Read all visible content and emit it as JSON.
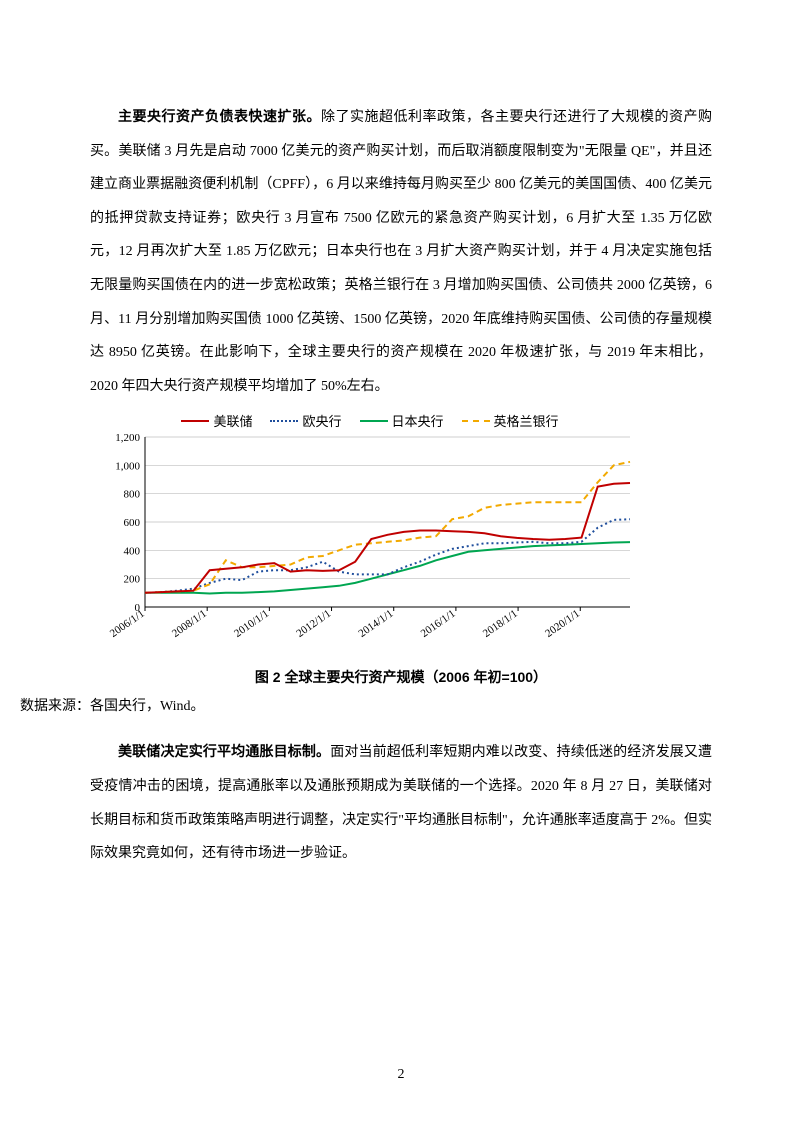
{
  "para1": {
    "bold": "主要央行资产负债表快速扩张。",
    "rest": "除了实施超低利率政策，各主要央行还进行了大规模的资产购买。美联储 3 月先是启动 7000 亿美元的资产购买计划，而后取消额度限制变为\"无限量 QE\"，并且还建立商业票据融资便利机制（CPFF），6 月以来维持每月购买至少 800 亿美元的美国国债、400 亿美元的抵押贷款支持证券；欧央行 3 月宣布 7500 亿欧元的紧急资产购买计划，6 月扩大至 1.35 万亿欧元，12 月再次扩大至 1.85 万亿欧元；日本央行也在 3 月扩大资产购买计划，并于 4 月决定实施包括无限量购买国债在内的进一步宽松政策；英格兰银行在 3 月增加购买国债、公司债共 2000 亿英镑，6 月、11 月分别增加购买国债 1000 亿英镑、1500 亿英镑，2020 年底维持购买国债、公司债的存量规模达 8950 亿英镑。在此影响下，全球主要央行的资产规模在 2020 年极速扩张，与 2019 年末相比，2020 年四大央行资产规模平均增加了 50%左右。"
  },
  "chart": {
    "legend": {
      "fed": "美联储",
      "ecb": "欧央行",
      "boj": "日本央行",
      "boe": "英格兰银行"
    },
    "colors": {
      "fed": "#c00000",
      "ecb": "#1f4e9c",
      "boj": "#00a651",
      "boe": "#f2a900",
      "axis": "#000000",
      "grid": "#bfbfbf"
    },
    "styles": {
      "fed_dash": "none",
      "ecb_dash": "2,3",
      "boj_dash": "none",
      "boe_dash": "6,4",
      "line_width": 2
    },
    "y": {
      "min": 0,
      "max": 1200,
      "step": 200,
      "ticks": [
        "0",
        "200",
        "400",
        "600",
        "800",
        "1,000",
        "1,200"
      ]
    },
    "x_labels": [
      "2006/1/1",
      "2008/1/1",
      "2010/1/1",
      "2012/1/1",
      "2014/1/1",
      "2016/1/1",
      "2018/1/1",
      "2020/1/1"
    ],
    "series": {
      "fed": [
        100,
        105,
        110,
        115,
        260,
        270,
        280,
        300,
        310,
        250,
        260,
        255,
        260,
        320,
        480,
        510,
        530,
        540,
        540,
        535,
        530,
        520,
        500,
        488,
        480,
        475,
        480,
        490,
        850,
        870,
        875
      ],
      "ecb": [
        100,
        105,
        115,
        130,
        170,
        200,
        190,
        250,
        260,
        260,
        280,
        320,
        250,
        230,
        230,
        230,
        280,
        320,
        370,
        410,
        430,
        450,
        450,
        455,
        460,
        450,
        450,
        460,
        560,
        615,
        620
      ],
      "boj": [
        100,
        100,
        100,
        100,
        95,
        100,
        100,
        105,
        110,
        120,
        130,
        140,
        150,
        170,
        200,
        230,
        260,
        290,
        330,
        360,
        390,
        400,
        410,
        420,
        430,
        435,
        440,
        445,
        450,
        455,
        458
      ],
      "boe": [
        100,
        105,
        110,
        115,
        160,
        330,
        280,
        280,
        290,
        300,
        350,
        360,
        400,
        440,
        450,
        460,
        470,
        490,
        500,
        620,
        640,
        700,
        720,
        730,
        740,
        740,
        740,
        740,
        880,
        1000,
        1025
      ]
    },
    "caption": "图 2  全球主要央行资产规模（2006 年初=100）",
    "source_label": "数据来源：",
    "source_text": "各国央行，Wind。"
  },
  "para2": {
    "bold": "美联储决定实行平均通胀目标制。",
    "rest": "面对当前超低利率短期内难以改变、持续低迷的经济发展又遭受疫情冲击的困境，提高通胀率以及通胀预期成为美联储的一个选择。2020 年 8 月 27 日，美联储对长期目标和货币政策策略声明进行调整，决定实行\"平均通胀目标制\"，允许通胀率适度高于 2%。但实际效果究竟如何，还有待市场进一步验证。"
  },
  "page_number": "2"
}
